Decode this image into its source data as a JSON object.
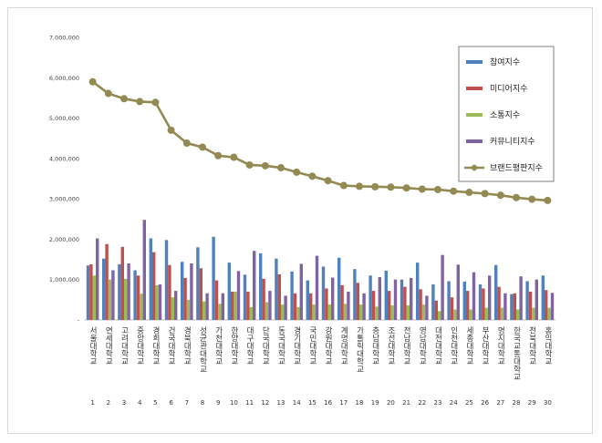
{
  "chart_data": {
    "type": "bar",
    "title": "",
    "xlabel": "",
    "ylabel": "",
    "ylim": [
      0,
      7000000
    ],
    "yticks": [
      "-",
      "1,000,000",
      "2,000,000",
      "3,000,000",
      "4,000,000",
      "5,000,000",
      "6,000,000",
      "7,000,000"
    ],
    "grid": false,
    "legend_position": "top-right",
    "categories": [
      "서울대학교",
      "연세대학교",
      "고려대학교",
      "중앙대학교",
      "경희대학교",
      "건국대학교",
      "경북대학교",
      "성균관대학교",
      "가천대학교",
      "한양대학교",
      "대구대학교",
      "단국대학교",
      "동국대학교",
      "경기대학교",
      "국민대학교",
      "강원대학교",
      "계명대학교",
      "가톨릭대학교",
      "충남대학교",
      "조선대학교",
      "전남대학교",
      "영남대학교",
      "대전대학교",
      "인천대학교",
      "세종대학교",
      "부산대학교",
      "명지대학교",
      "한국교통대학교",
      "전북대학교",
      "홍익대학교"
    ],
    "ranks": [
      "1",
      "2",
      "3",
      "4",
      "5",
      "6",
      "7",
      "8",
      "9",
      "10",
      "11",
      "12",
      "13",
      "14",
      "15",
      "16",
      "17",
      "18",
      "19",
      "20",
      "21",
      "22",
      "23",
      "24",
      "25",
      "26",
      "27",
      "28",
      "29",
      "30"
    ],
    "series": [
      {
        "name": "참여지수",
        "kind": "bar",
        "color": "#4f81bd",
        "values": [
          1350000,
          1520000,
          1380000,
          1230000,
          2020000,
          1980000,
          1440000,
          1800000,
          2060000,
          1420000,
          1120000,
          1650000,
          1520000,
          1200000,
          980000,
          1320000,
          1540000,
          1260000,
          1100000,
          1220000,
          1000000,
          1420000,
          880000,
          960000,
          950000,
          880000,
          1360000,
          640000,
          960000,
          1100000
        ]
      },
      {
        "name": "미디어지수",
        "kind": "bar",
        "color": "#c0504d",
        "values": [
          1380000,
          1880000,
          1810000,
          1100000,
          1680000,
          1360000,
          1040000,
          1280000,
          980000,
          700000,
          700000,
          1020000,
          1130000,
          660000,
          660000,
          780000,
          860000,
          920000,
          720000,
          720000,
          820000,
          760000,
          480000,
          560000,
          720000,
          780000,
          820000,
          660000,
          700000,
          740000
        ]
      },
      {
        "name": "소통지수",
        "kind": "bar",
        "color": "#9bbb59",
        "values": [
          1100000,
          1000000,
          1020000,
          650000,
          860000,
          560000,
          500000,
          460000,
          400000,
          700000,
          320000,
          440000,
          380000,
          320000,
          380000,
          380000,
          400000,
          380000,
          330000,
          360000,
          360000,
          380000,
          220000,
          260000,
          260000,
          300000,
          300000,
          260000,
          300000,
          300000
        ]
      },
      {
        "name": "커뮤니티지수",
        "kind": "bar",
        "color": "#8064a2",
        "values": [
          2020000,
          1230000,
          1400000,
          2480000,
          880000,
          720000,
          1400000,
          660000,
          660000,
          1210000,
          1710000,
          720000,
          600000,
          1390000,
          1590000,
          1050000,
          700000,
          660000,
          1060000,
          1000000,
          1040000,
          600000,
          1610000,
          1370000,
          1180000,
          1100000,
          660000,
          1080000,
          1000000,
          670000
        ]
      },
      {
        "name": "브랜드평판지수",
        "kind": "line",
        "color": "#938953",
        "values": [
          5900000,
          5610000,
          5480000,
          5410000,
          5390000,
          4700000,
          4380000,
          4280000,
          4070000,
          4030000,
          3840000,
          3820000,
          3770000,
          3660000,
          3560000,
          3450000,
          3330000,
          3310000,
          3300000,
          3290000,
          3270000,
          3240000,
          3230000,
          3190000,
          3160000,
          3130000,
          3090000,
          3030000,
          2990000,
          2960000
        ]
      }
    ]
  }
}
